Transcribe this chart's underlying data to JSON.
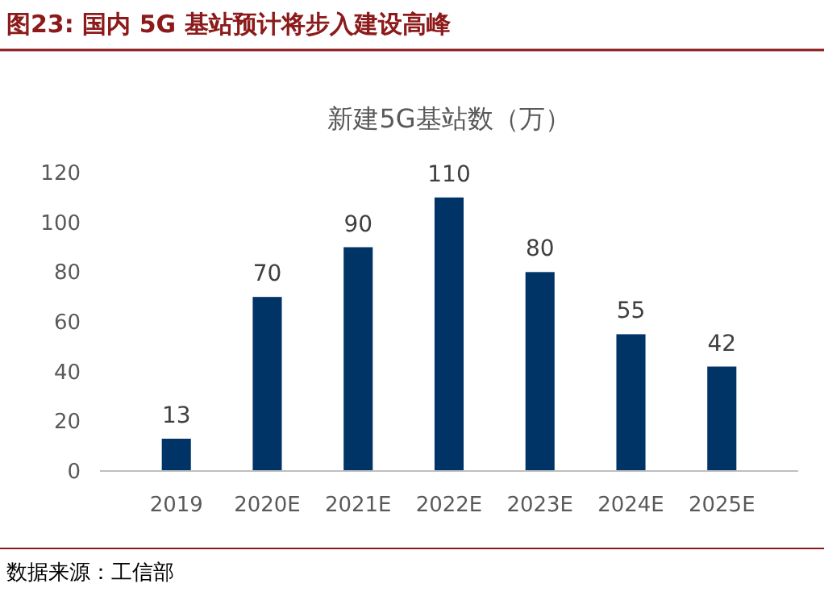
{
  "chart_data": {
    "type": "bar",
    "title": "图23:  国内 5G 基站预计将步入建设高峰",
    "subtitle": "新建5G基站数（万）",
    "annotations": [
      "数据来源：工信部"
    ],
    "categories": [
      "2019",
      "2020E",
      "2021E",
      "2022E",
      "2023E",
      "2024E",
      "2025E"
    ],
    "values": [
      13,
      70,
      90,
      110,
      80,
      55,
      42
    ],
    "color": "#003366",
    "ylim": [
      0,
      120
    ],
    "yticks": [
      0,
      20,
      40,
      60,
      80,
      100,
      120
    ],
    "grid": false,
    "data_labels": true
  }
}
